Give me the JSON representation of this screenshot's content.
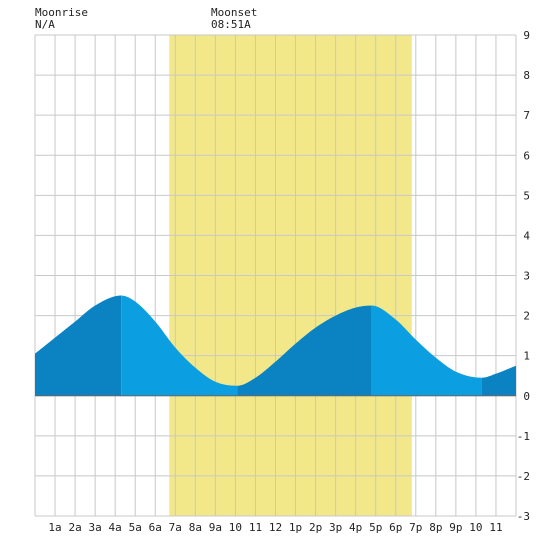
{
  "moonrise": {
    "label": "Moonrise",
    "time": "N/A"
  },
  "moonset": {
    "label": "Moonset",
    "time": "08:51A"
  },
  "chart_data": {
    "type": "area",
    "title": "",
    "xlabel": "",
    "ylabel": "",
    "x_range_hours": [
      0,
      24
    ],
    "ylim": [
      -3,
      9
    ],
    "y_ticks": [
      -3,
      -2,
      -1,
      0,
      1,
      2,
      3,
      4,
      5,
      6,
      7,
      8,
      9
    ],
    "x_ticks": [
      {
        "hour": 1,
        "label": "1a"
      },
      {
        "hour": 2,
        "label": "2a"
      },
      {
        "hour": 3,
        "label": "3a"
      },
      {
        "hour": 4,
        "label": "4a"
      },
      {
        "hour": 5,
        "label": "5a"
      },
      {
        "hour": 6,
        "label": "6a"
      },
      {
        "hour": 7,
        "label": "7a"
      },
      {
        "hour": 8,
        "label": "8a"
      },
      {
        "hour": 9,
        "label": "9a"
      },
      {
        "hour": 10,
        "label": "10"
      },
      {
        "hour": 11,
        "label": "11"
      },
      {
        "hour": 12,
        "label": "12"
      },
      {
        "hour": 13,
        "label": "1p"
      },
      {
        "hour": 14,
        "label": "2p"
      },
      {
        "hour": 15,
        "label": "3p"
      },
      {
        "hour": 16,
        "label": "4p"
      },
      {
        "hour": 17,
        "label": "5p"
      },
      {
        "hour": 18,
        "label": "6p"
      },
      {
        "hour": 19,
        "label": "7p"
      },
      {
        "hour": 20,
        "label": "8p"
      },
      {
        "hour": 21,
        "label": "9p"
      },
      {
        "hour": 22,
        "label": "10"
      },
      {
        "hour": 23,
        "label": "11"
      }
    ],
    "daylight": {
      "start_hour": 6.7,
      "end_hour": 18.8
    },
    "tide_extremes": [
      {
        "hour": 4.3,
        "height": 2.5,
        "kind": "high"
      },
      {
        "hour": 10.1,
        "height": 0.25,
        "kind": "low"
      },
      {
        "hour": 16.8,
        "height": 2.25,
        "kind": "high"
      },
      {
        "hour": 22.3,
        "height": 0.45,
        "kind": "low"
      }
    ],
    "series": [
      {
        "values": [
          {
            "hour": 0.0,
            "height": 1.05
          },
          {
            "hour": 1.0,
            "height": 1.45
          },
          {
            "hour": 2.0,
            "height": 1.85
          },
          {
            "hour": 3.0,
            "height": 2.25
          },
          {
            "hour": 4.3,
            "height": 2.5
          },
          {
            "hour": 5.0,
            "height": 2.35
          },
          {
            "hour": 6.0,
            "height": 1.85
          },
          {
            "hour": 7.0,
            "height": 1.2
          },
          {
            "hour": 8.0,
            "height": 0.7
          },
          {
            "hour": 9.0,
            "height": 0.35
          },
          {
            "hour": 10.1,
            "height": 0.25
          },
          {
            "hour": 11.0,
            "height": 0.45
          },
          {
            "hour": 12.0,
            "height": 0.85
          },
          {
            "hour": 13.0,
            "height": 1.3
          },
          {
            "hour": 14.0,
            "height": 1.7
          },
          {
            "hour": 15.0,
            "height": 2.0
          },
          {
            "hour": 16.0,
            "height": 2.2
          },
          {
            "hour": 16.8,
            "height": 2.25
          },
          {
            "hour": 18.0,
            "height": 1.9
          },
          {
            "hour": 19.0,
            "height": 1.4
          },
          {
            "hour": 20.0,
            "height": 0.95
          },
          {
            "hour": 21.0,
            "height": 0.6
          },
          {
            "hour": 22.3,
            "height": 0.45
          },
          {
            "hour": 23.0,
            "height": 0.55
          },
          {
            "hour": 24.0,
            "height": 0.75
          }
        ]
      }
    ],
    "grid": true
  },
  "colors": {
    "grid": "#c8c8c8",
    "plot_bg": "#ffffff",
    "daylight": "#f2e88a",
    "tide_rising": "#0b82c2",
    "tide_falling": "#0b9ee0",
    "zero_line": "#666666",
    "text": "#222222"
  }
}
